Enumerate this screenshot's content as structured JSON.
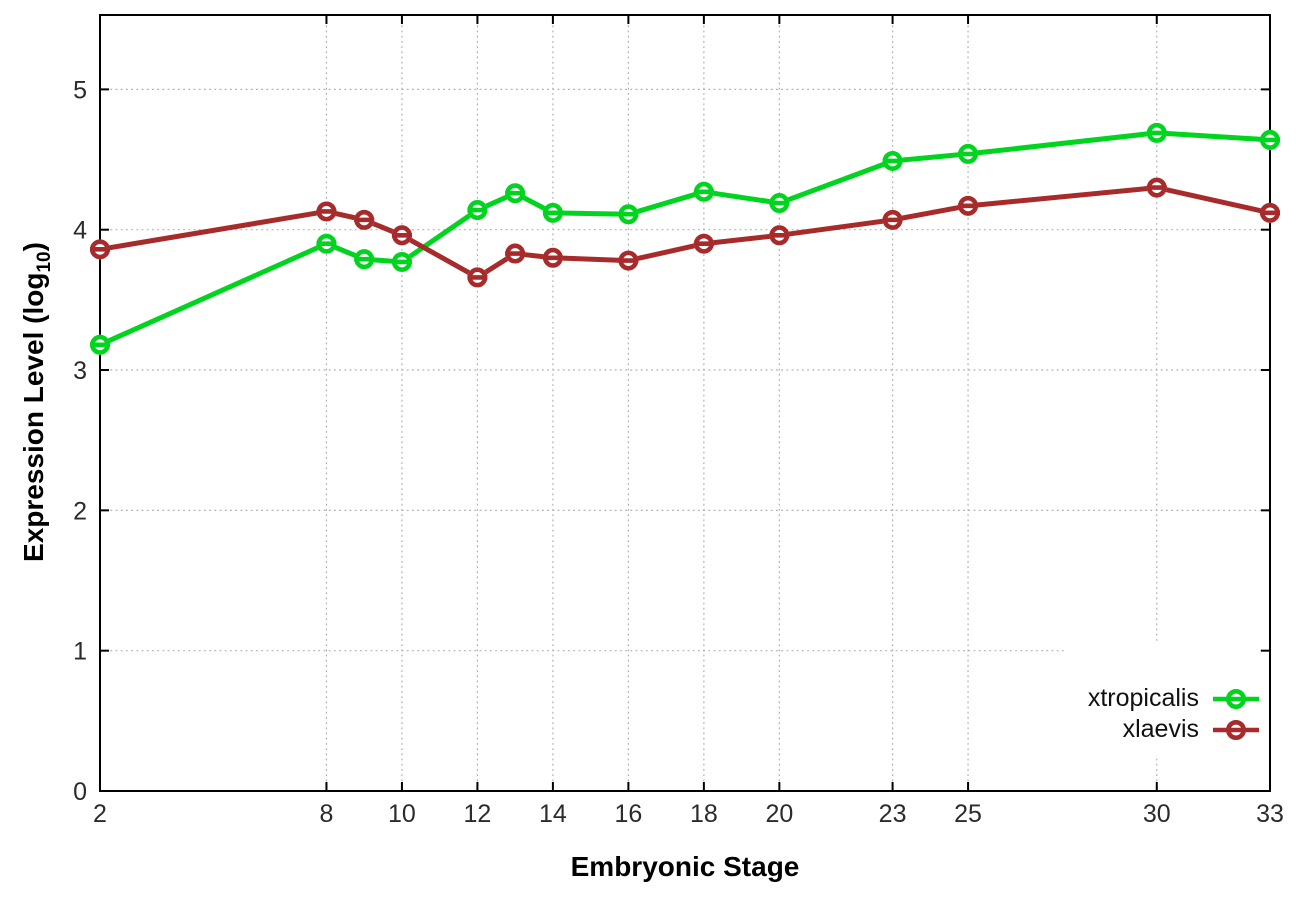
{
  "chart_data": {
    "type": "line",
    "title": "",
    "xlabel": "Embryonic Stage",
    "ylabel": {
      "main": "Expression Level (log",
      "sub": "10",
      "close": ")"
    },
    "x": [
      2,
      8,
      9,
      10,
      12,
      13,
      14,
      16,
      18,
      20,
      23,
      25,
      30,
      33
    ],
    "xticks": [
      2,
      8,
      10,
      12,
      14,
      16,
      18,
      20,
      23,
      25,
      30,
      33
    ],
    "yticks": [
      0,
      1,
      2,
      3,
      4,
      5
    ],
    "xlim": [
      2,
      33
    ],
    "ylim": [
      0,
      5.53
    ],
    "grid": true,
    "legend_position": "bottom-right",
    "series": [
      {
        "name": "xtropicalis",
        "color": "#00d41e",
        "marker": "open-circle-dash",
        "values": [
          3.18,
          3.9,
          3.79,
          3.77,
          4.14,
          4.26,
          4.12,
          4.11,
          4.27,
          4.19,
          4.49,
          4.54,
          4.69,
          4.64
        ]
      },
      {
        "name": "xlaevis",
        "color": "#a82b2b",
        "marker": "open-circle-dash",
        "values": [
          3.86,
          4.13,
          4.07,
          3.96,
          3.66,
          3.83,
          3.8,
          3.78,
          3.9,
          3.96,
          4.07,
          4.17,
          4.3,
          4.12
        ]
      }
    ],
    "colors": {
      "axis": "#000000",
      "grid": "#b0b0b0",
      "tick_label": "#2b2b2b",
      "background": "#ffffff"
    }
  }
}
